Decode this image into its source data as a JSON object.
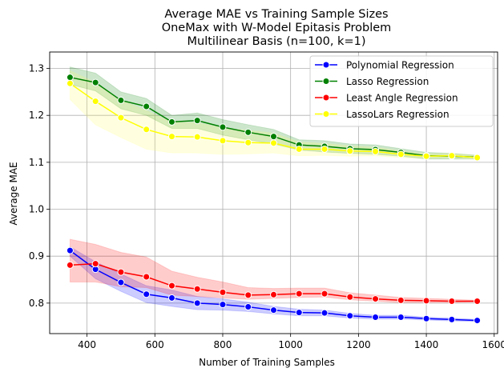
{
  "chart_data": {
    "type": "line",
    "title": "Average MAE vs Training Sample Sizes",
    "subtitle": [
      "OneMax with W-Model Epitasis Problem",
      "Multilinear Basis (n=100, k=1)"
    ],
    "xlabel": "Number of Training Samples",
    "ylabel": "Average MAE",
    "xlim": [
      290,
      1610
    ],
    "ylim": [
      0.735,
      1.335
    ],
    "xticks": [
      400,
      600,
      800,
      1000,
      1200,
      1400,
      1600
    ],
    "yticks": [
      0.8,
      0.9,
      1.0,
      1.1,
      1.2,
      1.3
    ],
    "xtick_labels": [
      "400",
      "600",
      "800",
      "1000",
      "1200",
      "1400",
      "1600"
    ],
    "ytick_labels": [
      "0.8",
      "0.9",
      "1.0",
      "1.1",
      "1.2",
      "1.3"
    ],
    "grid": true,
    "legend_position": "top-right",
    "x": [
      350,
      425,
      500,
      575,
      650,
      725,
      800,
      875,
      950,
      1025,
      1100,
      1175,
      1250,
      1325,
      1400,
      1475,
      1550
    ],
    "series": [
      {
        "name": "Polynomial Regression",
        "color": "#0000ff",
        "band_color": "#0000ff",
        "values": [
          0.912,
          0.872,
          0.844,
          0.819,
          0.811,
          0.8,
          0.797,
          0.792,
          0.785,
          0.78,
          0.779,
          0.773,
          0.77,
          0.77,
          0.767,
          0.765,
          0.763
        ],
        "lower": [
          0.9,
          0.852,
          0.825,
          0.801,
          0.793,
          0.786,
          0.785,
          0.782,
          0.777,
          0.773,
          0.773,
          0.768,
          0.766,
          0.766,
          0.764,
          0.762,
          0.761
        ],
        "upper": [
          0.92,
          0.888,
          0.862,
          0.837,
          0.828,
          0.814,
          0.809,
          0.802,
          0.793,
          0.787,
          0.785,
          0.778,
          0.774,
          0.774,
          0.77,
          0.768,
          0.765
        ]
      },
      {
        "name": "Lasso Regression",
        "color": "#008000",
        "band_color": "#008000",
        "values": [
          1.281,
          1.27,
          1.232,
          1.219,
          1.186,
          1.189,
          1.175,
          1.164,
          1.155,
          1.137,
          1.134,
          1.129,
          1.127,
          1.121,
          1.114,
          1.113,
          1.111
        ],
        "lower": [
          1.266,
          1.252,
          1.214,
          1.2,
          1.172,
          1.172,
          1.158,
          1.148,
          1.139,
          1.126,
          1.122,
          1.119,
          1.117,
          1.113,
          1.107,
          1.107,
          1.107
        ],
        "upper": [
          1.303,
          1.29,
          1.25,
          1.236,
          1.2,
          1.205,
          1.191,
          1.18,
          1.17,
          1.148,
          1.146,
          1.139,
          1.137,
          1.129,
          1.121,
          1.119,
          1.115
        ]
      },
      {
        "name": "Least Angle Regression",
        "color": "#ff0000",
        "band_color": "#ff0000",
        "values": [
          0.881,
          0.884,
          0.866,
          0.856,
          0.837,
          0.83,
          0.823,
          0.817,
          0.818,
          0.82,
          0.82,
          0.813,
          0.809,
          0.806,
          0.805,
          0.804,
          0.804
        ],
        "lower": [
          0.845,
          0.845,
          0.835,
          0.833,
          0.817,
          0.814,
          0.811,
          0.808,
          0.81,
          0.812,
          0.813,
          0.807,
          0.804,
          0.801,
          0.801,
          0.801,
          0.802
        ],
        "upper": [
          0.936,
          0.925,
          0.908,
          0.898,
          0.868,
          0.855,
          0.845,
          0.833,
          0.831,
          0.832,
          0.832,
          0.822,
          0.817,
          0.812,
          0.81,
          0.808,
          0.806
        ]
      },
      {
        "name": "LassoLars Regression",
        "color": "#ffff00",
        "band_color": "#ffff66",
        "values": [
          1.268,
          1.23,
          1.195,
          1.17,
          1.155,
          1.154,
          1.146,
          1.142,
          1.141,
          1.128,
          1.128,
          1.124,
          1.123,
          1.117,
          1.113,
          1.114,
          1.11
        ],
        "lower": [
          1.234,
          1.18,
          1.153,
          1.128,
          1.12,
          1.12,
          1.117,
          1.118,
          1.12,
          1.114,
          1.115,
          1.113,
          1.114,
          1.11,
          1.108,
          1.109,
          1.106
        ],
        "upper": [
          1.295,
          1.27,
          1.232,
          1.21,
          1.185,
          1.184,
          1.173,
          1.168,
          1.162,
          1.143,
          1.14,
          1.135,
          1.132,
          1.124,
          1.118,
          1.119,
          1.114
        ]
      }
    ]
  }
}
